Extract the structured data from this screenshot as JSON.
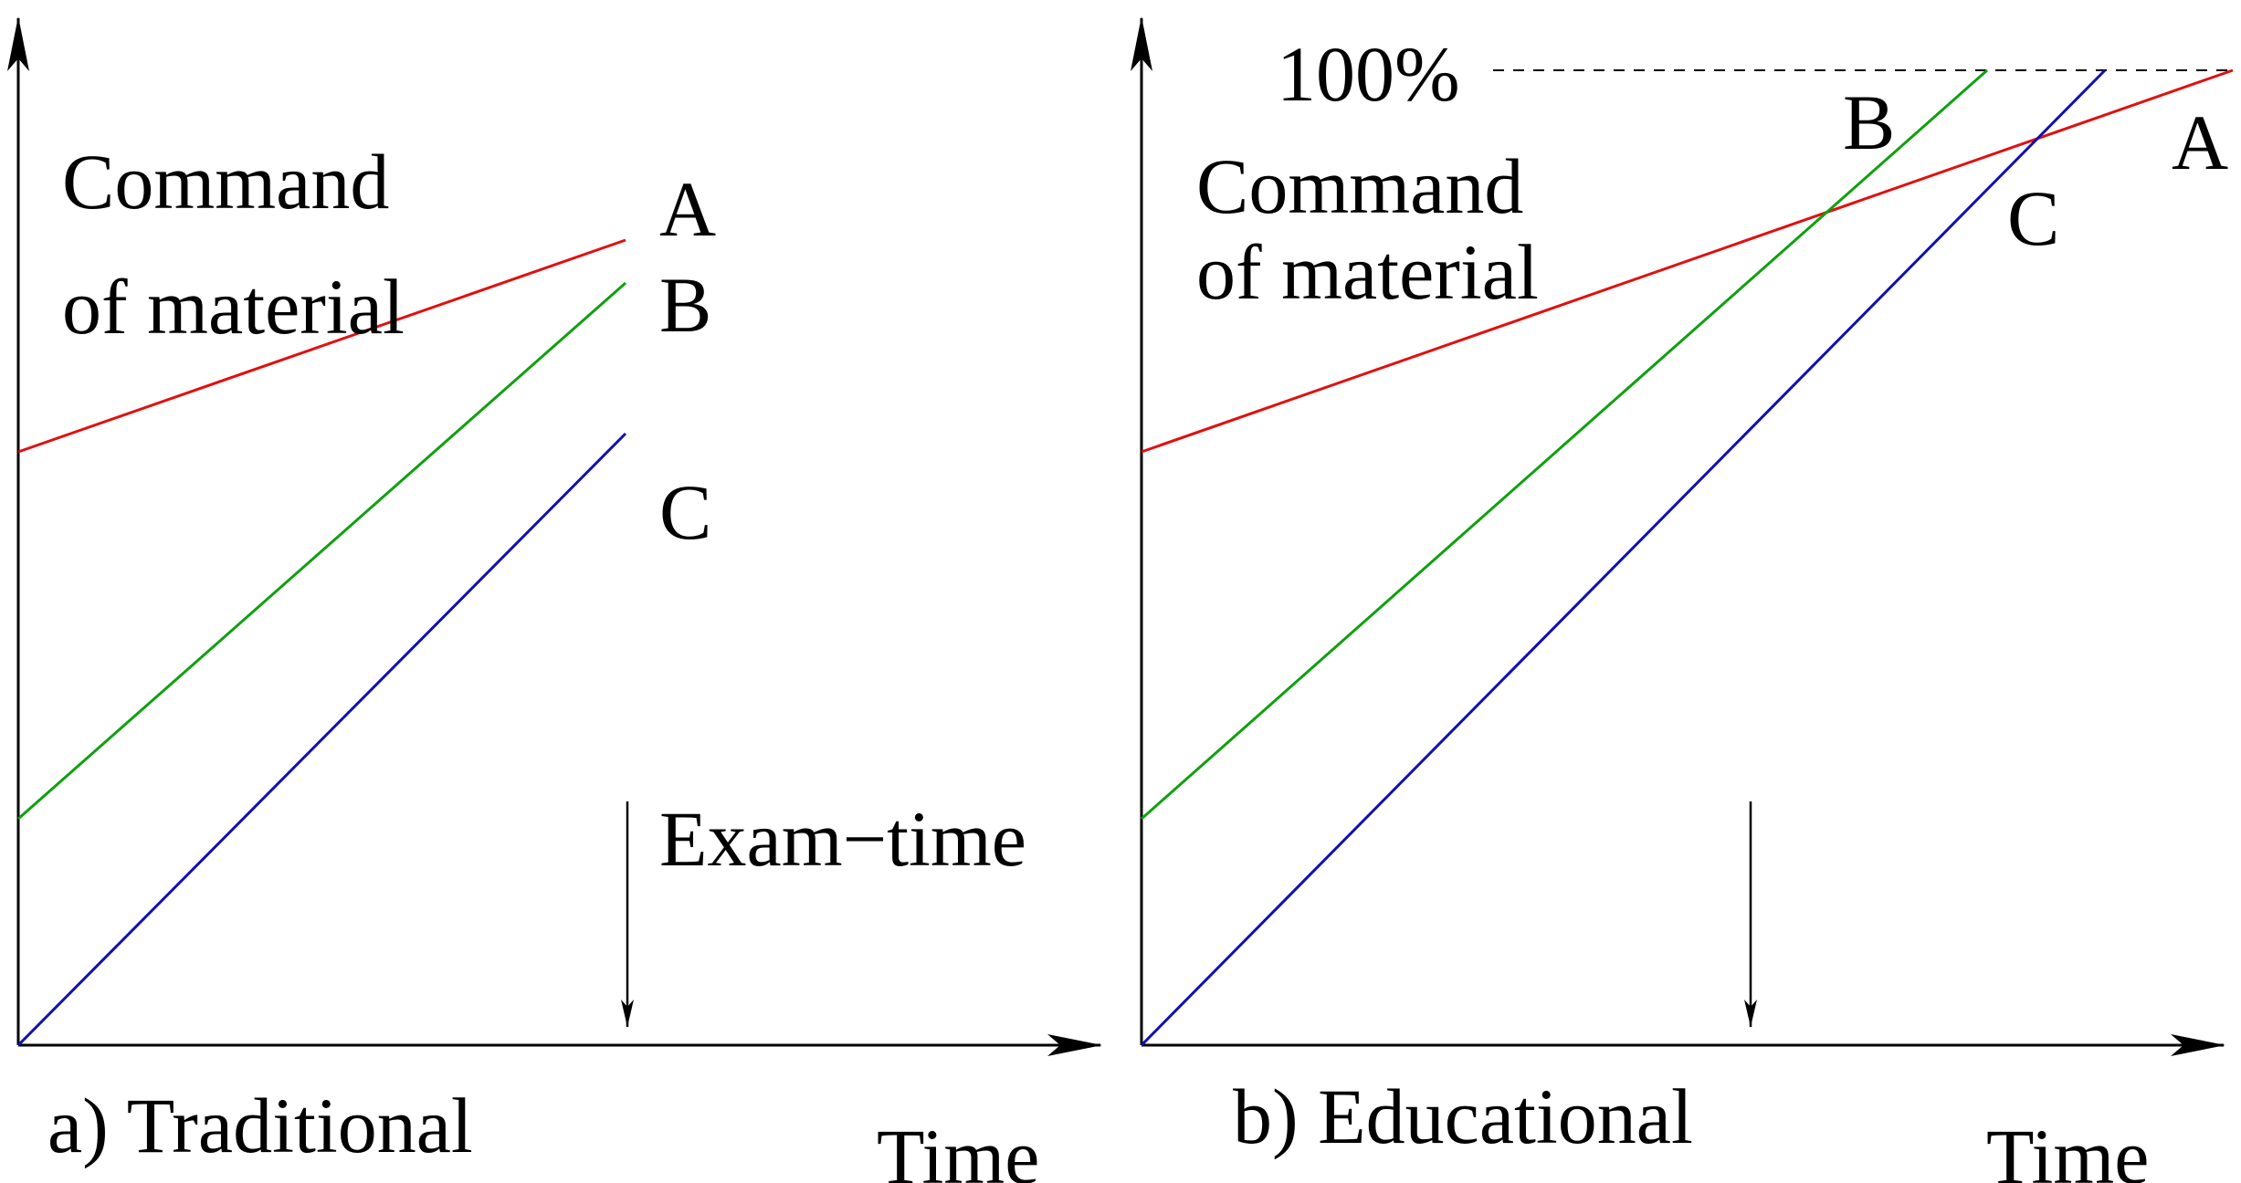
{
  "colors": {
    "axis": "#000000",
    "line_A": "#e01010",
    "line_B": "#10a010",
    "line_C": "#1010b0",
    "guide": "#000000"
  },
  "panels": [
    {
      "id": "traditional",
      "caption": "a) Traditional",
      "ylabel_line1": "Command",
      "ylabel_line2": "of material",
      "xlabel": "Time",
      "marker_label": "Exam−time",
      "series": [
        {
          "name": "A"
        },
        {
          "name": "B"
        },
        {
          "name": "C"
        }
      ]
    },
    {
      "id": "educational",
      "caption": "b) Educational",
      "ylabel_line1": "Command",
      "ylabel_line2": "of material",
      "xlabel": "Time",
      "ceiling_label": "100%",
      "series": [
        {
          "name": "A"
        },
        {
          "name": "B"
        },
        {
          "name": "C"
        }
      ]
    }
  ]
}
